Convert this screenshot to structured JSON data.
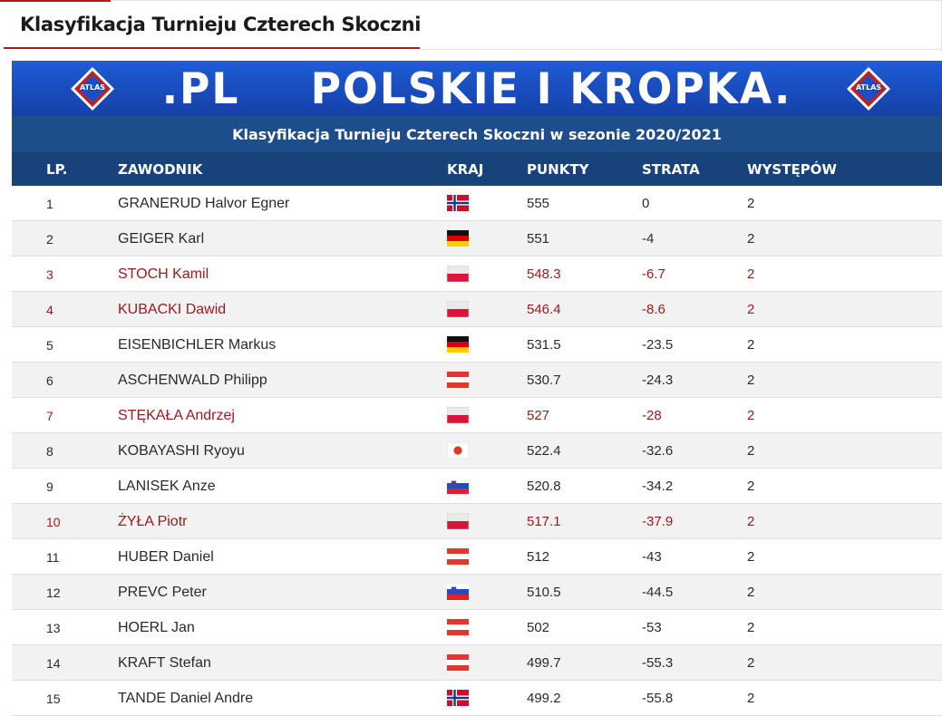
{
  "page_title": "Klasyfikacja Turnieju Czterech Skoczni",
  "banner": {
    "text_part1": ".PL",
    "text_part2": "POLSKIE I KROPKA.",
    "logo_label": "ATLAS"
  },
  "table": {
    "caption": "Klasyfikacja Turnieju Czterech Skoczni w sezonie 2020/2021",
    "headers": {
      "lp": "LP.",
      "name": "ZAWODNIK",
      "country": "KRAJ",
      "points": "PUNKTY",
      "strata": "STRATA",
      "wystepow": "WYSTĘPÓW"
    },
    "rows": [
      {
        "lp": "1",
        "name": "GRANERUD Halvor Egner",
        "flag": "norway-flag",
        "points": "555",
        "strata": "0",
        "wystepow": "2",
        "polish": false
      },
      {
        "lp": "2",
        "name": "GEIGER Karl",
        "flag": "germany-flag",
        "points": "551",
        "strata": "-4",
        "wystepow": "2",
        "polish": false
      },
      {
        "lp": "3",
        "name": "STOCH Kamil",
        "flag": "poland-flag",
        "points": "548.3",
        "strata": "-6.7",
        "wystepow": "2",
        "polish": true
      },
      {
        "lp": "4",
        "name": "KUBACKI Dawid",
        "flag": "poland-flag",
        "points": "546.4",
        "strata": "-8.6",
        "wystepow": "2",
        "polish": true
      },
      {
        "lp": "5",
        "name": "EISENBICHLER Markus",
        "flag": "germany-flag",
        "points": "531.5",
        "strata": "-23.5",
        "wystepow": "2",
        "polish": false
      },
      {
        "lp": "6",
        "name": "ASCHENWALD Philipp",
        "flag": "austria-flag",
        "points": "530.7",
        "strata": "-24.3",
        "wystepow": "2",
        "polish": false
      },
      {
        "lp": "7",
        "name": "STĘKAŁA Andrzej",
        "flag": "poland-flag",
        "points": "527",
        "strata": "-28",
        "wystepow": "2",
        "polish": true
      },
      {
        "lp": "8",
        "name": "KOBAYASHI Ryoyu",
        "flag": "japan-flag",
        "points": "522.4",
        "strata": "-32.6",
        "wystepow": "2",
        "polish": false
      },
      {
        "lp": "9",
        "name": "LANISEK Anze",
        "flag": "slovenia-flag",
        "points": "520.8",
        "strata": "-34.2",
        "wystepow": "2",
        "polish": false
      },
      {
        "lp": "10",
        "name": "ŻYŁA Piotr",
        "flag": "poland-flag",
        "points": "517.1",
        "strata": "-37.9",
        "wystepow": "2",
        "polish": true
      },
      {
        "lp": "11",
        "name": "HUBER Daniel",
        "flag": "austria-flag",
        "points": "512",
        "strata": "-43",
        "wystepow": "2",
        "polish": false
      },
      {
        "lp": "12",
        "name": "PREVC Peter",
        "flag": "slovenia-flag",
        "points": "510.5",
        "strata": "-44.5",
        "wystepow": "2",
        "polish": false
      },
      {
        "lp": "13",
        "name": "HOERL Jan",
        "flag": "austria-flag",
        "points": "502",
        "strata": "-53",
        "wystepow": "2",
        "polish": false
      },
      {
        "lp": "14",
        "name": "KRAFT Stefan",
        "flag": "austria-flag",
        "points": "499.7",
        "strata": "-55.3",
        "wystepow": "2",
        "polish": false
      },
      {
        "lp": "15",
        "name": "TANDE Daniel Andre",
        "flag": "norway-flag",
        "points": "499.2",
        "strata": "-55.8",
        "wystepow": "2",
        "polish": false
      }
    ]
  },
  "colors": {
    "accent_red": "#b5191e",
    "polish_row_text": "#a2181d",
    "caption_bg": "#1d4e8b",
    "header_bg": "#17427a",
    "banner_blue": "#1a4fc3"
  }
}
